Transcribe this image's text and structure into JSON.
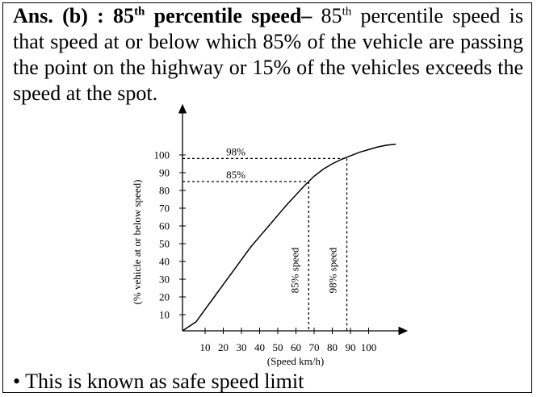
{
  "answer": {
    "label": "Ans. (b) : 85",
    "label_sup": "th",
    "term": " percentile speed",
    "dash": "–",
    "text_start": " 85",
    "text_sup": "th",
    "text_rest": " percentile speed is that speed at or below which 85% of the vehicle are passing the point on the highway or 15% of the vehicles exceeds the speed at the spot."
  },
  "chart_data": {
    "type": "line",
    "xlabel": "(Speed km/h)",
    "ylabel": "(% vehicle at or below speed)",
    "x_ticks": [
      10,
      20,
      30,
      40,
      50,
      60,
      70,
      80,
      90,
      100
    ],
    "y_ticks": [
      10,
      20,
      30,
      40,
      50,
      60,
      70,
      80,
      90,
      100
    ],
    "xlim": [
      0,
      115
    ],
    "ylim": [
      0,
      108
    ],
    "curve": {
      "x": [
        0,
        5,
        10,
        15,
        20,
        25,
        30,
        35,
        40,
        45,
        50,
        55,
        60,
        65,
        70,
        75,
        80,
        85,
        90,
        95,
        100,
        105,
        110,
        115
      ],
      "y": [
        0,
        6,
        13,
        20,
        27,
        34,
        41,
        48,
        54,
        60,
        66,
        72,
        77.5,
        83,
        88,
        92,
        95,
        97.5,
        99.5,
        101.5,
        103,
        104.5,
        105.5,
        106
      ]
    },
    "annotations": [
      {
        "label": "85%",
        "y": 85,
        "x": 67,
        "vertical_label": "85% speed"
      },
      {
        "label": "98%",
        "y": 98,
        "x": 88,
        "vertical_label": "98% speed"
      }
    ]
  },
  "bullet": {
    "symbol": "•",
    "text": "This is known as safe speed limit"
  }
}
